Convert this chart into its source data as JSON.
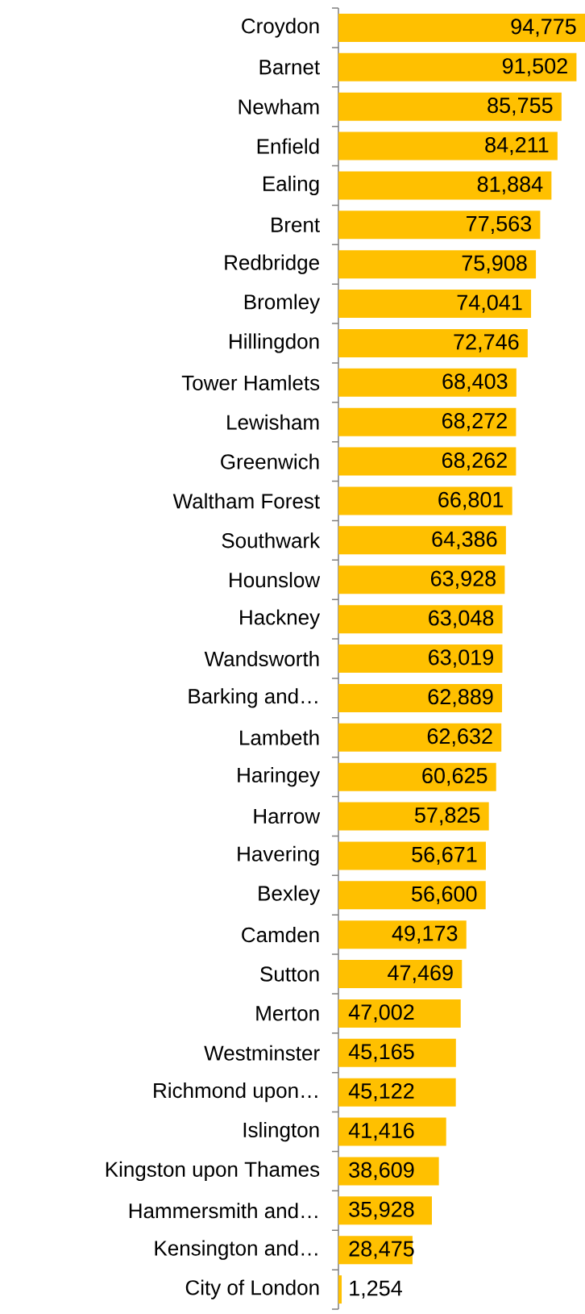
{
  "chart_data": {
    "type": "bar",
    "orientation": "horizontal",
    "color": "#ffc000",
    "categories": [
      "Croydon",
      "Barnet",
      "Newham",
      "Enfield",
      "Ealing",
      "Brent",
      "Redbridge",
      "Bromley",
      "Hillingdon",
      "Tower Hamlets",
      "Lewisham",
      "Greenwich",
      "Waltham Forest",
      "Southwark",
      "Hounslow",
      "Hackney",
      "Wandsworth",
      "Barking and…",
      "Lambeth",
      "Haringey",
      "Harrow",
      "Havering",
      "Bexley",
      "Camden",
      "Sutton",
      "Merton",
      "Westminster",
      "Richmond upon…",
      "Islington",
      "Kingston upon Thames",
      "Hammersmith and…",
      "Kensington and…",
      "City of London"
    ],
    "value_labels": [
      "94,775",
      "91,502",
      "85,755",
      "84,211",
      "81,884",
      "77,563",
      "75,908",
      "74,041",
      "72,746",
      "68,403",
      "68,272",
      "68,262",
      "66,801",
      "64,386",
      "63,928",
      "63,048",
      "63,019",
      "62,889",
      "62,632",
      "60,625",
      "57,825",
      "56,671",
      "56,600",
      "49,173",
      "47,469",
      "47,002",
      "45,165",
      "45,122",
      "41,416",
      "38,609",
      "35,928",
      "28,475",
      "1,254"
    ],
    "values": [
      94775,
      91502,
      85755,
      84211,
      81884,
      77563,
      75908,
      74041,
      72746,
      68403,
      68272,
      68262,
      66801,
      64386,
      63928,
      63048,
      63019,
      62889,
      62632,
      60625,
      57825,
      56671,
      56600,
      49173,
      47469,
      47002,
      45165,
      45122,
      41416,
      38609,
      35928,
      28475,
      1254
    ]
  }
}
